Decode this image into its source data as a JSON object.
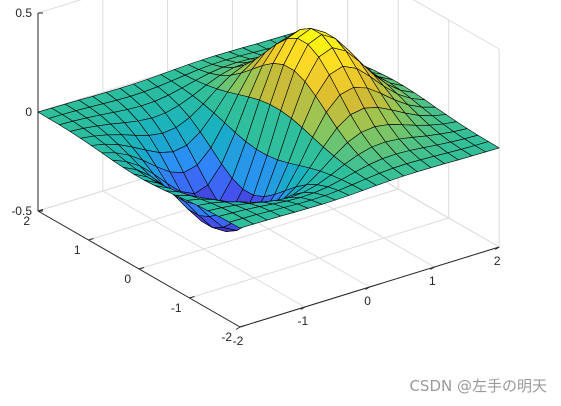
{
  "chart_data": {
    "type": "surface",
    "function": "z = x * exp(-x^2 - y^2)",
    "x": {
      "min": -2,
      "max": 2,
      "count": 20
    },
    "y": {
      "min": -2,
      "max": 2,
      "count": 20
    },
    "xlim": [
      -2,
      2
    ],
    "ylim": [
      -2,
      2
    ],
    "zlim": [
      -0.5,
      0.5
    ],
    "xticks": [
      -2,
      -1,
      0,
      1,
      2
    ],
    "yticks": [
      -2,
      -1,
      0,
      1,
      2
    ],
    "zticks": [
      -0.5,
      0,
      0.5
    ],
    "xtick_labels": [
      "-2",
      "-1",
      "0",
      "1",
      "2"
    ],
    "ytick_labels": [
      "-2",
      "-1",
      "0",
      "1",
      "2"
    ],
    "ztick_labels": [
      "-0.5",
      "0",
      "0.5"
    ],
    "grid": true,
    "box": false,
    "colormap": "parula",
    "colormap_stops": [
      "#3e26a8",
      "#4354f3",
      "#2d8ef7",
      "#17b1c1",
      "#2fbf9c",
      "#8ec75b",
      "#d7ba32",
      "#fdd628",
      "#f9fb0e"
    ],
    "edge_color": "#000000",
    "grid_color": "#dcdcdc",
    "axis_color": "#262626"
  },
  "watermark": "CSDN @左手の明天"
}
